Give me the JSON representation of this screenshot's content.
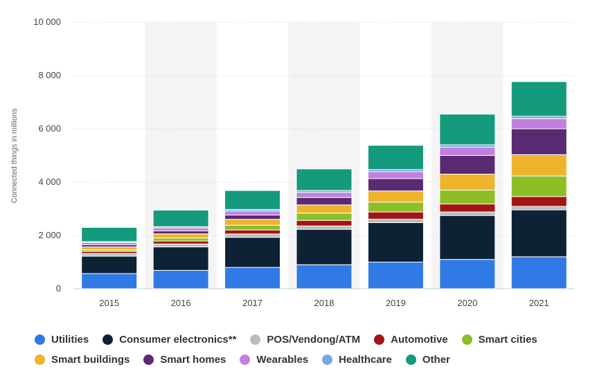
{
  "chart_data": {
    "type": "bar",
    "stacked": true,
    "title": "",
    "xlabel": "",
    "ylabel": "Connected things in millions",
    "ylim": [
      0,
      10000
    ],
    "yticks": [
      0,
      2000,
      4000,
      6000,
      8000,
      10000
    ],
    "ytick_labels": [
      "0",
      "2 000",
      "4 000",
      "6 000",
      "8 000",
      "10 000"
    ],
    "grid": "horizontal dotted",
    "categories": [
      "2015",
      "2016",
      "2017",
      "2018",
      "2019",
      "2020",
      "2021"
    ],
    "series": [
      {
        "name": "Utilities",
        "color": "#2f7ae5",
        "values": [
          570,
          690,
          800,
          900,
          1000,
          1100,
          1200
        ]
      },
      {
        "name": "Consumer electronics**",
        "color": "#0e2235",
        "values": [
          650,
          880,
          1130,
          1330,
          1480,
          1650,
          1760
        ]
      },
      {
        "name": "POS/Vendong/ATM",
        "color": "#bcbcbc",
        "values": [
          100,
          110,
          125,
          125,
          130,
          130,
          130
        ]
      },
      {
        "name": "Automotive",
        "color": "#a51414",
        "values": [
          80,
          110,
          150,
          210,
          270,
          300,
          370
        ]
      },
      {
        "name": "Smart cities",
        "color": "#8cbf26",
        "values": [
          60,
          110,
          180,
          270,
          370,
          520,
          770
        ]
      },
      {
        "name": "Smart buildings",
        "color": "#efb32c",
        "values": [
          110,
          160,
          220,
          310,
          420,
          600,
          800
        ]
      },
      {
        "name": "Smart homes",
        "color": "#5a2a72",
        "values": [
          80,
          110,
          160,
          280,
          460,
          700,
          970
        ]
      },
      {
        "name": "Wearables",
        "color": "#c27fdf",
        "values": [
          80,
          110,
          150,
          190,
          260,
          310,
          380
        ]
      },
      {
        "name": "Healthcare",
        "color": "#76a9e6",
        "values": [
          40,
          50,
          60,
          70,
          80,
          90,
          90
        ]
      },
      {
        "name": "Other",
        "color": "#149a7c",
        "values": [
          530,
          620,
          710,
          810,
          910,
          1150,
          1300
        ]
      }
    ],
    "legend_position": "bottom",
    "legend_rows": [
      [
        0,
        1,
        2,
        3,
        4
      ],
      [
        5,
        6,
        7,
        8,
        9
      ]
    ]
  }
}
